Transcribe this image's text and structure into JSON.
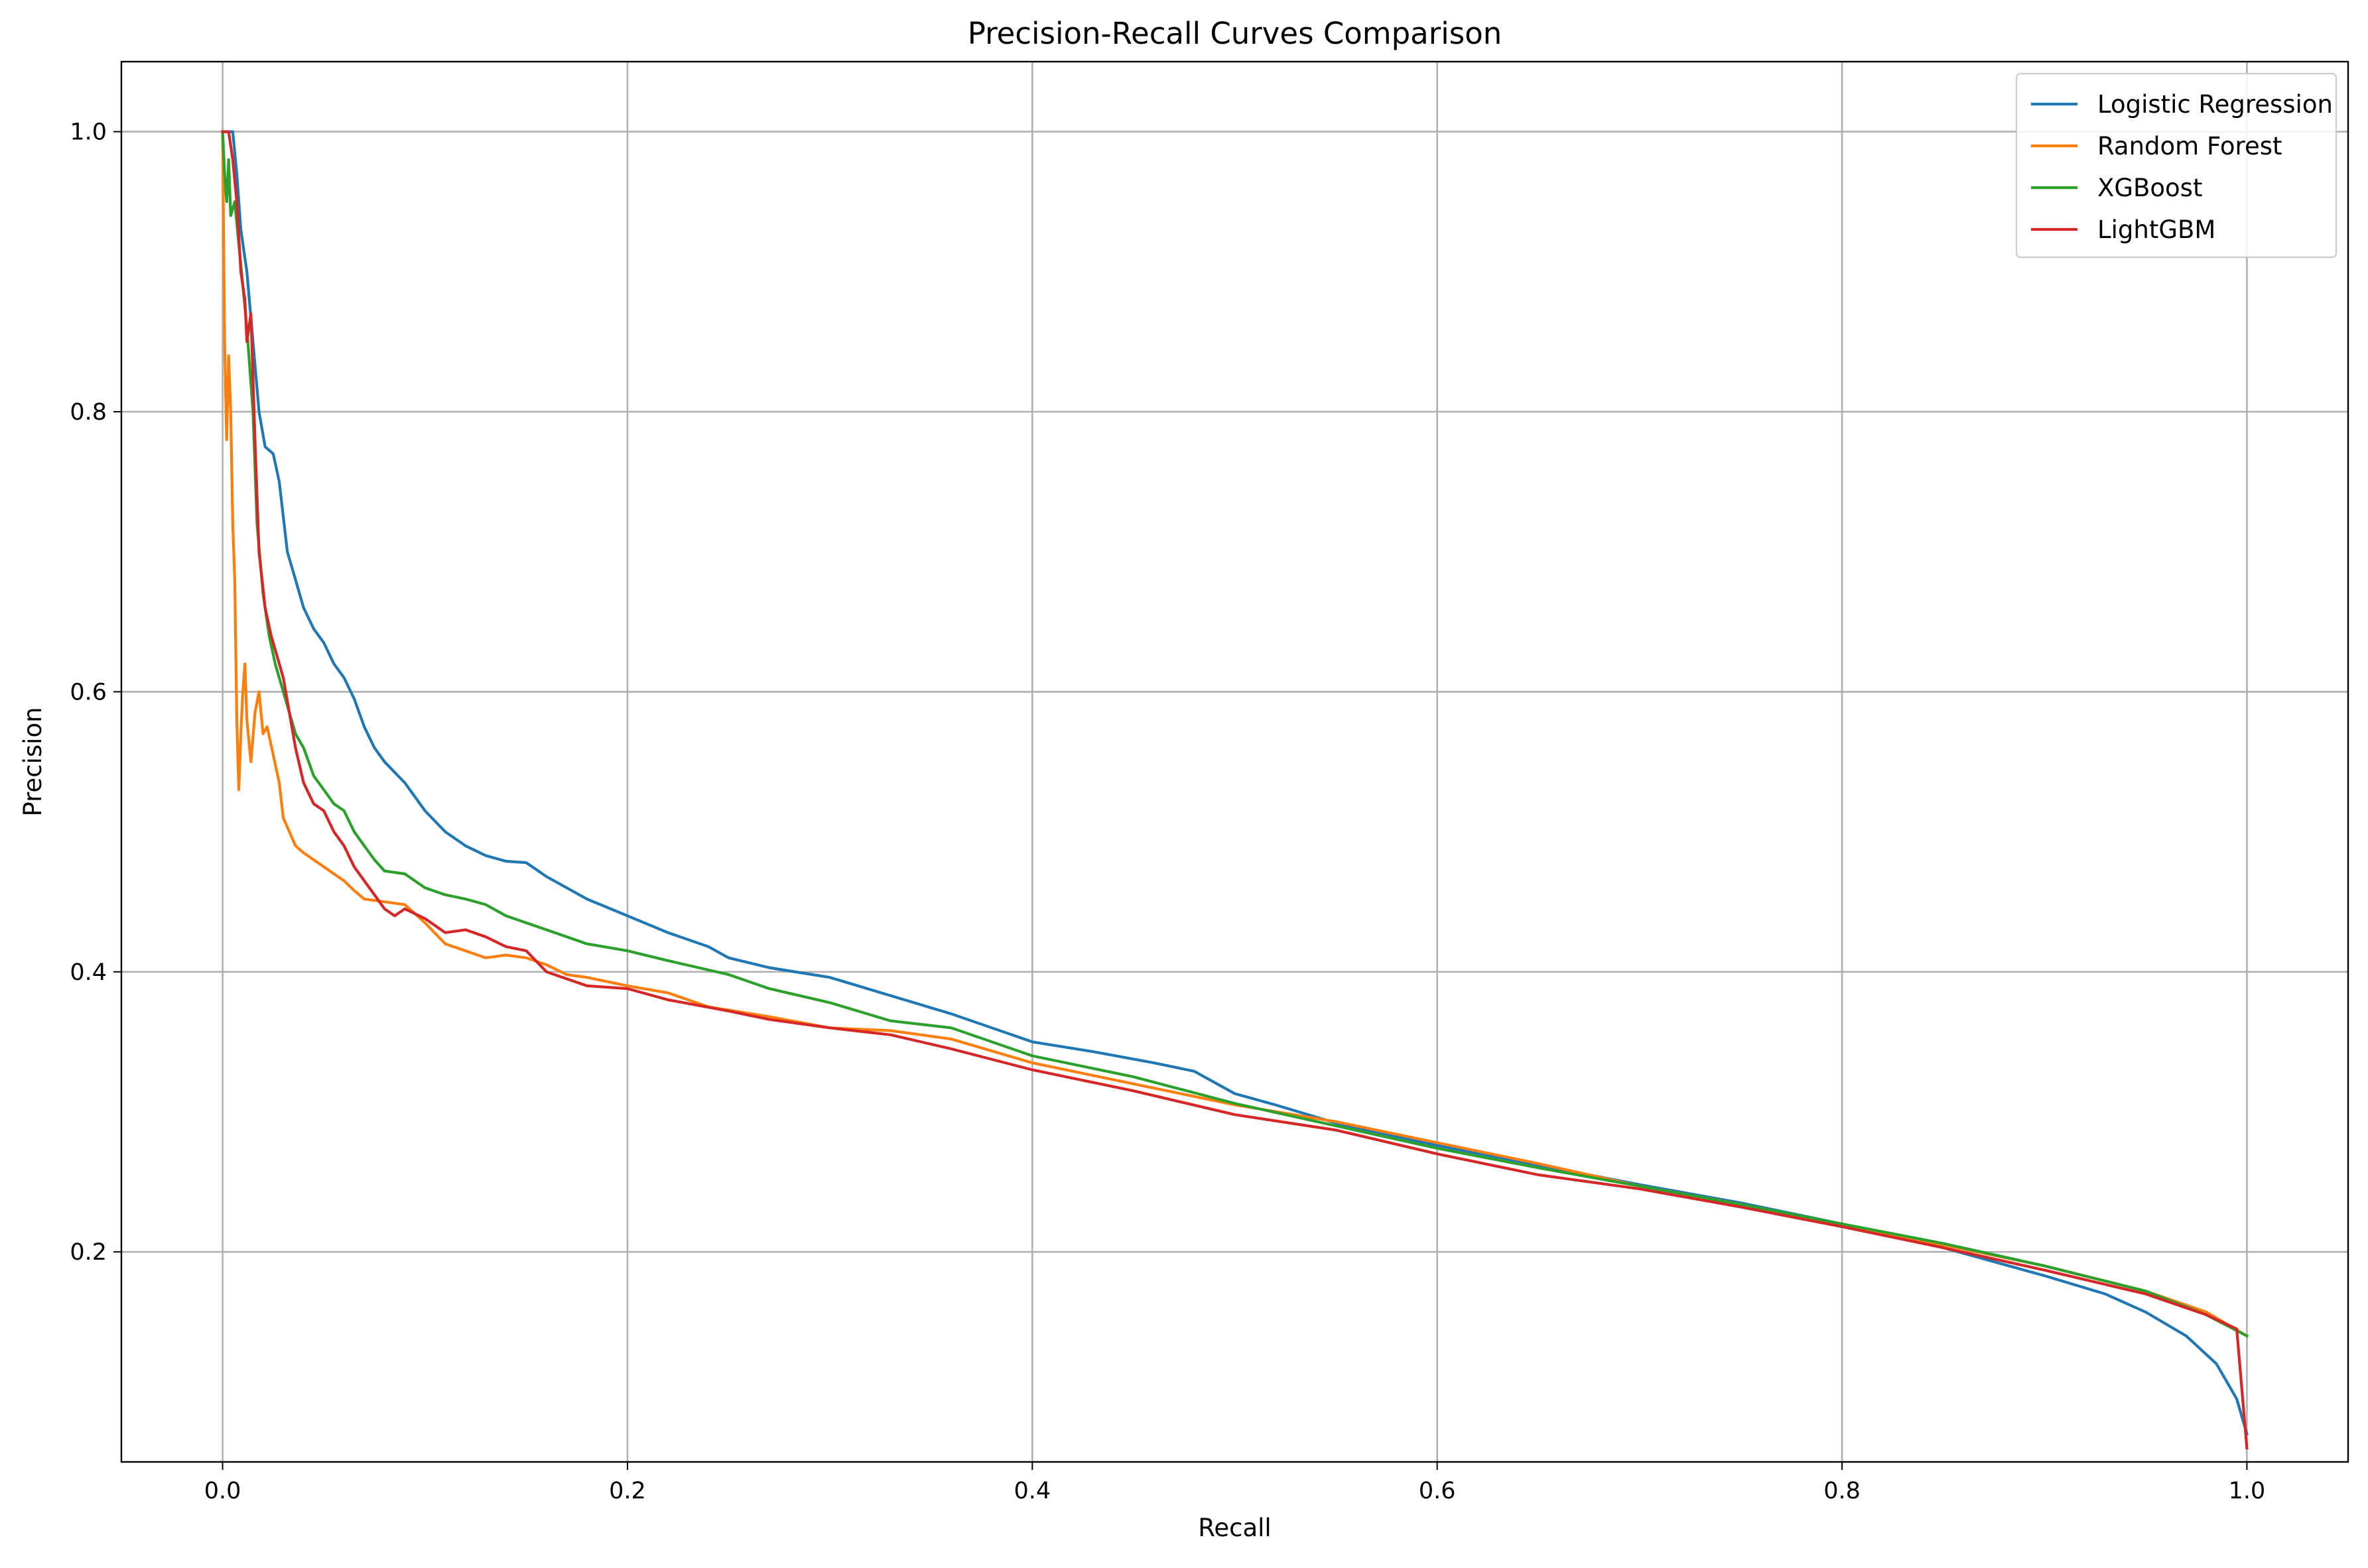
{
  "chart_data": {
    "type": "line",
    "title": "Precision-Recall Curves Comparison",
    "xlabel": "Recall",
    "ylabel": "Precision",
    "xlim": [
      -0.05,
      1.05
    ],
    "ylim": [
      0.05,
      1.05
    ],
    "xticks": [
      0.0,
      0.2,
      0.4,
      0.6,
      0.8,
      1.0
    ],
    "yticks": [
      0.2,
      0.4,
      0.6,
      0.8,
      1.0
    ],
    "xtick_labels": [
      "0.0",
      "0.2",
      "0.4",
      "0.6",
      "0.8",
      "1.0"
    ],
    "ytick_labels": [
      "0.2",
      "0.4",
      "0.6",
      "0.8",
      "1.0"
    ],
    "grid": true,
    "legend_position": "top-right",
    "series": [
      {
        "name": "Logistic Regression",
        "color": "#1f77b4",
        "points": [
          [
            0.0,
            1.0
          ],
          [
            0.002,
            1.0
          ],
          [
            0.005,
            1.0
          ],
          [
            0.007,
            0.97
          ],
          [
            0.009,
            0.93
          ],
          [
            0.012,
            0.9
          ],
          [
            0.015,
            0.85
          ],
          [
            0.018,
            0.8
          ],
          [
            0.021,
            0.775
          ],
          [
            0.025,
            0.77
          ],
          [
            0.028,
            0.75
          ],
          [
            0.032,
            0.7
          ],
          [
            0.036,
            0.68
          ],
          [
            0.04,
            0.66
          ],
          [
            0.045,
            0.645
          ],
          [
            0.05,
            0.635
          ],
          [
            0.055,
            0.62
          ],
          [
            0.06,
            0.61
          ],
          [
            0.065,
            0.595
          ],
          [
            0.07,
            0.575
          ],
          [
            0.075,
            0.56
          ],
          [
            0.08,
            0.55
          ],
          [
            0.09,
            0.535
          ],
          [
            0.1,
            0.515
          ],
          [
            0.11,
            0.5
          ],
          [
            0.12,
            0.49
          ],
          [
            0.13,
            0.483
          ],
          [
            0.14,
            0.479
          ],
          [
            0.15,
            0.478
          ],
          [
            0.16,
            0.468
          ],
          [
            0.17,
            0.46
          ],
          [
            0.18,
            0.452
          ],
          [
            0.2,
            0.44
          ],
          [
            0.22,
            0.428
          ],
          [
            0.24,
            0.418
          ],
          [
            0.25,
            0.41
          ],
          [
            0.27,
            0.403
          ],
          [
            0.3,
            0.396
          ],
          [
            0.33,
            0.383
          ],
          [
            0.36,
            0.37
          ],
          [
            0.4,
            0.35
          ],
          [
            0.43,
            0.343
          ],
          [
            0.46,
            0.335
          ],
          [
            0.48,
            0.329
          ],
          [
            0.5,
            0.313
          ],
          [
            0.52,
            0.305
          ],
          [
            0.55,
            0.292
          ],
          [
            0.6,
            0.276
          ],
          [
            0.65,
            0.262
          ],
          [
            0.7,
            0.248
          ],
          [
            0.75,
            0.235
          ],
          [
            0.8,
            0.22
          ],
          [
            0.85,
            0.203
          ],
          [
            0.9,
            0.183
          ],
          [
            0.93,
            0.17
          ],
          [
            0.95,
            0.157
          ],
          [
            0.97,
            0.14
          ],
          [
            0.985,
            0.12
          ],
          [
            0.995,
            0.095
          ],
          [
            1.0,
            0.07
          ]
        ]
      },
      {
        "name": "Random Forest",
        "color": "#ff7f0e",
        "points": [
          [
            0.0,
            1.0
          ],
          [
            0.001,
            0.85
          ],
          [
            0.002,
            0.78
          ],
          [
            0.003,
            0.84
          ],
          [
            0.004,
            0.8
          ],
          [
            0.005,
            0.72
          ],
          [
            0.006,
            0.68
          ],
          [
            0.007,
            0.58
          ],
          [
            0.008,
            0.53
          ],
          [
            0.009,
            0.57
          ],
          [
            0.01,
            0.6
          ],
          [
            0.011,
            0.62
          ],
          [
            0.012,
            0.58
          ],
          [
            0.014,
            0.55
          ],
          [
            0.016,
            0.585
          ],
          [
            0.018,
            0.6
          ],
          [
            0.02,
            0.57
          ],
          [
            0.022,
            0.575
          ],
          [
            0.025,
            0.555
          ],
          [
            0.028,
            0.535
          ],
          [
            0.03,
            0.51
          ],
          [
            0.033,
            0.5
          ],
          [
            0.036,
            0.49
          ],
          [
            0.04,
            0.485
          ],
          [
            0.045,
            0.48
          ],
          [
            0.05,
            0.475
          ],
          [
            0.055,
            0.47
          ],
          [
            0.06,
            0.465
          ],
          [
            0.065,
            0.458
          ],
          [
            0.07,
            0.452
          ],
          [
            0.08,
            0.45
          ],
          [
            0.09,
            0.448
          ],
          [
            0.1,
            0.435
          ],
          [
            0.11,
            0.42
          ],
          [
            0.12,
            0.415
          ],
          [
            0.13,
            0.41
          ],
          [
            0.14,
            0.412
          ],
          [
            0.15,
            0.41
          ],
          [
            0.16,
            0.405
          ],
          [
            0.17,
            0.398
          ],
          [
            0.18,
            0.396
          ],
          [
            0.2,
            0.39
          ],
          [
            0.22,
            0.385
          ],
          [
            0.24,
            0.375
          ],
          [
            0.27,
            0.368
          ],
          [
            0.3,
            0.36
          ],
          [
            0.33,
            0.358
          ],
          [
            0.36,
            0.352
          ],
          [
            0.4,
            0.335
          ],
          [
            0.45,
            0.32
          ],
          [
            0.5,
            0.305
          ],
          [
            0.55,
            0.293
          ],
          [
            0.6,
            0.278
          ],
          [
            0.65,
            0.263
          ],
          [
            0.7,
            0.247
          ],
          [
            0.75,
            0.234
          ],
          [
            0.8,
            0.219
          ],
          [
            0.85,
            0.205
          ],
          [
            0.9,
            0.19
          ],
          [
            0.95,
            0.172
          ],
          [
            0.98,
            0.157
          ],
          [
            1.0,
            0.14
          ]
        ]
      },
      {
        "name": "XGBoost",
        "color": "#2ca02c",
        "points": [
          [
            0.0,
            1.0
          ],
          [
            0.001,
            0.97
          ],
          [
            0.002,
            0.95
          ],
          [
            0.003,
            0.98
          ],
          [
            0.004,
            0.94
          ],
          [
            0.006,
            0.95
          ],
          [
            0.008,
            0.92
          ],
          [
            0.01,
            0.89
          ],
          [
            0.012,
            0.86
          ],
          [
            0.014,
            0.82
          ],
          [
            0.015,
            0.8
          ],
          [
            0.017,
            0.72
          ],
          [
            0.02,
            0.67
          ],
          [
            0.023,
            0.64
          ],
          [
            0.026,
            0.62
          ],
          [
            0.03,
            0.6
          ],
          [
            0.033,
            0.585
          ],
          [
            0.036,
            0.57
          ],
          [
            0.04,
            0.56
          ],
          [
            0.045,
            0.54
          ],
          [
            0.05,
            0.53
          ],
          [
            0.055,
            0.52
          ],
          [
            0.06,
            0.515
          ],
          [
            0.065,
            0.5
          ],
          [
            0.07,
            0.49
          ],
          [
            0.075,
            0.48
          ],
          [
            0.08,
            0.472
          ],
          [
            0.09,
            0.47
          ],
          [
            0.1,
            0.46
          ],
          [
            0.11,
            0.455
          ],
          [
            0.12,
            0.452
          ],
          [
            0.13,
            0.448
          ],
          [
            0.14,
            0.44
          ],
          [
            0.15,
            0.435
          ],
          [
            0.16,
            0.43
          ],
          [
            0.18,
            0.42
          ],
          [
            0.2,
            0.415
          ],
          [
            0.22,
            0.408
          ],
          [
            0.25,
            0.398
          ],
          [
            0.27,
            0.388
          ],
          [
            0.3,
            0.378
          ],
          [
            0.33,
            0.365
          ],
          [
            0.36,
            0.36
          ],
          [
            0.4,
            0.34
          ],
          [
            0.45,
            0.325
          ],
          [
            0.5,
            0.306
          ],
          [
            0.55,
            0.29
          ],
          [
            0.6,
            0.274
          ],
          [
            0.65,
            0.26
          ],
          [
            0.7,
            0.247
          ],
          [
            0.75,
            0.234
          ],
          [
            0.8,
            0.22
          ],
          [
            0.85,
            0.206
          ],
          [
            0.9,
            0.19
          ],
          [
            0.95,
            0.172
          ],
          [
            0.98,
            0.155
          ],
          [
            1.0,
            0.14
          ]
        ]
      },
      {
        "name": "LightGBM",
        "color": "#d62728",
        "points": [
          [
            0.0,
            1.0
          ],
          [
            0.003,
            1.0
          ],
          [
            0.005,
            0.98
          ],
          [
            0.007,
            0.95
          ],
          [
            0.009,
            0.9
          ],
          [
            0.011,
            0.88
          ],
          [
            0.012,
            0.85
          ],
          [
            0.014,
            0.87
          ],
          [
            0.016,
            0.78
          ],
          [
            0.018,
            0.7
          ],
          [
            0.021,
            0.66
          ],
          [
            0.024,
            0.64
          ],
          [
            0.027,
            0.625
          ],
          [
            0.03,
            0.61
          ],
          [
            0.033,
            0.585
          ],
          [
            0.036,
            0.56
          ],
          [
            0.04,
            0.535
          ],
          [
            0.045,
            0.52
          ],
          [
            0.05,
            0.515
          ],
          [
            0.055,
            0.5
          ],
          [
            0.06,
            0.49
          ],
          [
            0.065,
            0.475
          ],
          [
            0.07,
            0.465
          ],
          [
            0.075,
            0.455
          ],
          [
            0.08,
            0.445
          ],
          [
            0.085,
            0.44
          ],
          [
            0.09,
            0.445
          ],
          [
            0.1,
            0.438
          ],
          [
            0.11,
            0.428
          ],
          [
            0.12,
            0.43
          ],
          [
            0.13,
            0.425
          ],
          [
            0.14,
            0.418
          ],
          [
            0.15,
            0.415
          ],
          [
            0.16,
            0.4
          ],
          [
            0.17,
            0.395
          ],
          [
            0.18,
            0.39
          ],
          [
            0.2,
            0.388
          ],
          [
            0.22,
            0.38
          ],
          [
            0.25,
            0.372
          ],
          [
            0.27,
            0.366
          ],
          [
            0.3,
            0.36
          ],
          [
            0.33,
            0.355
          ],
          [
            0.36,
            0.345
          ],
          [
            0.4,
            0.33
          ],
          [
            0.45,
            0.315
          ],
          [
            0.5,
            0.298
          ],
          [
            0.55,
            0.287
          ],
          [
            0.6,
            0.27
          ],
          [
            0.65,
            0.255
          ],
          [
            0.7,
            0.245
          ],
          [
            0.75,
            0.232
          ],
          [
            0.8,
            0.218
          ],
          [
            0.85,
            0.203
          ],
          [
            0.9,
            0.187
          ],
          [
            0.95,
            0.17
          ],
          [
            0.98,
            0.155
          ],
          [
            0.995,
            0.145
          ],
          [
            1.0,
            0.06
          ]
        ]
      }
    ]
  }
}
